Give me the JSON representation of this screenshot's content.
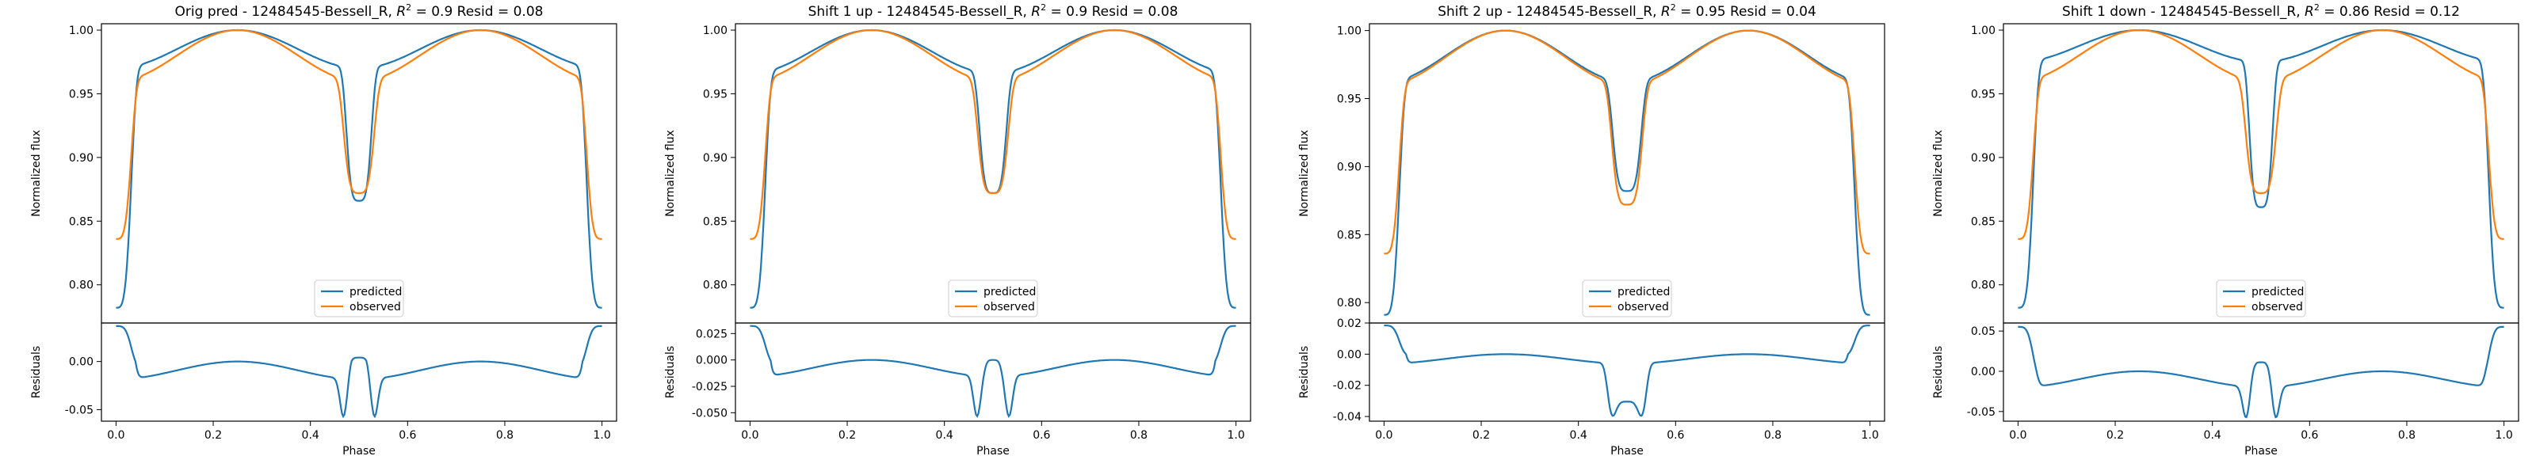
{
  "colors": {
    "predicted": "#1f77b4",
    "observed": "#ff7f0e"
  },
  "chart_data": [
    {
      "type": "line",
      "title": "Orig pred - 12484545-Bessell_R, R² = 0.9 Resid = 0.08",
      "title_prefix": "Orig pred - 12484545-Bessell_R, ",
      "title_suffix": " = 0.9 Resid = 0.08",
      "xlabel": "Phase",
      "ylabel": "Normalized flux",
      "resid_label": "Residuals",
      "xlim": [
        -0.03,
        1.03
      ],
      "ylim": [
        0.77,
        1.005
      ],
      "resid_ylim": [
        -0.062,
        0.04
      ],
      "xticks": [
        "0.0",
        "0.2",
        "0.4",
        "0.6",
        "0.8",
        "1.0"
      ],
      "yticks": [
        "0.80",
        "0.85",
        "0.90",
        "0.95",
        "1.00"
      ],
      "resid_yticks": [
        "-0.05",
        "0.00"
      ],
      "legend": {
        "location": "lower center",
        "entries": [
          "predicted",
          "observed"
        ]
      },
      "series": [
        {
          "name": "predicted",
          "model": {
            "plateau": 0.97,
            "amp": 0.03,
            "primary_depth": 0.104,
            "primary_width": 0.028,
            "edge_low": 0.782
          }
        },
        {
          "name": "observed",
          "model": {
            "plateau": 0.96,
            "amp": 0.04,
            "primary_depth": 0.088,
            "primary_width": 0.034,
            "edge_low": 0.836
          }
        }
      ]
    },
    {
      "type": "line",
      "title": "Shift 1 up - 12484545-Bessell_R, R² = 0.9 Resid = 0.08",
      "title_prefix": "Shift 1 up - 12484545-Bessell_R, ",
      "title_suffix": " = 0.9 Resid = 0.08",
      "xlabel": "Phase",
      "ylabel": "Normalized flux",
      "resid_label": "Residuals",
      "xlim": [
        -0.03,
        1.03
      ],
      "ylim": [
        0.77,
        1.005
      ],
      "resid_ylim": [
        -0.058,
        0.035
      ],
      "xticks": [
        "0.0",
        "0.2",
        "0.4",
        "0.6",
        "0.8",
        "1.0"
      ],
      "yticks": [
        "0.80",
        "0.85",
        "0.90",
        "0.95",
        "1.00"
      ],
      "resid_yticks": [
        "-0.050",
        "-0.025",
        "0.000",
        "0.025"
      ],
      "legend": {
        "location": "lower center",
        "entries": [
          "predicted",
          "observed"
        ]
      },
      "series": [
        {
          "name": "predicted",
          "model": {
            "plateau": 0.966,
            "amp": 0.034,
            "primary_depth": 0.094,
            "primary_width": 0.03,
            "edge_low": 0.782
          }
        },
        {
          "name": "observed",
          "model": {
            "plateau": 0.96,
            "amp": 0.04,
            "primary_depth": 0.088,
            "primary_width": 0.034,
            "edge_low": 0.836
          }
        }
      ]
    },
    {
      "type": "line",
      "title": "Shift 2 up - 12484545-Bessell_R, R² = 0.95 Resid = 0.04",
      "title_prefix": "Shift 2 up - 12484545-Bessell_R, ",
      "title_suffix": " = 0.95 Resid = 0.04",
      "xlabel": "Phase",
      "ylabel": "Normalized flux",
      "resid_label": "Residuals",
      "xlim": [
        -0.03,
        1.03
      ],
      "ylim": [
        0.785,
        1.005
      ],
      "resid_ylim": [
        -0.043,
        0.02
      ],
      "xticks": [
        "0.0",
        "0.2",
        "0.4",
        "0.6",
        "0.8",
        "1.0"
      ],
      "yticks": [
        "0.80",
        "0.85",
        "0.90",
        "0.95",
        "1.00"
      ],
      "resid_yticks": [
        "-0.04",
        "-0.02",
        "0.00",
        "0.02"
      ],
      "legend": {
        "location": "lower center",
        "entries": [
          "predicted",
          "observed"
        ]
      },
      "series": [
        {
          "name": "predicted",
          "model": {
            "plateau": 0.962,
            "amp": 0.038,
            "primary_depth": 0.08,
            "primary_width": 0.032,
            "edge_low": 0.791
          }
        },
        {
          "name": "observed",
          "model": {
            "plateau": 0.96,
            "amp": 0.04,
            "primary_depth": 0.088,
            "primary_width": 0.034,
            "edge_low": 0.836
          }
        }
      ]
    },
    {
      "type": "line",
      "title": "Shift 1 down - 12484545-Bessell_R, R² = 0.86 Resid = 0.12",
      "title_prefix": "Shift 1 down - 12484545-Bessell_R, ",
      "title_suffix": " = 0.86 Resid = 0.12",
      "xlabel": "Phase",
      "ylabel": "Normalized flux",
      "resid_label": "Residuals",
      "xlim": [
        -0.03,
        1.03
      ],
      "ylim": [
        0.77,
        1.005
      ],
      "resid_ylim": [
        -0.062,
        0.06
      ],
      "xticks": [
        "0.0",
        "0.2",
        "0.4",
        "0.6",
        "0.8",
        "1.0"
      ],
      "yticks": [
        "0.80",
        "0.85",
        "0.90",
        "0.95",
        "1.00"
      ],
      "resid_yticks": [
        "-0.05",
        "0.00",
        "0.05"
      ],
      "legend": {
        "location": "lower center",
        "entries": [
          "predicted",
          "observed"
        ]
      },
      "series": [
        {
          "name": "predicted",
          "model": {
            "plateau": 0.975,
            "amp": 0.025,
            "primary_depth": 0.114,
            "primary_width": 0.026,
            "edge_low": 0.782
          }
        },
        {
          "name": "observed",
          "model": {
            "plateau": 0.96,
            "amp": 0.04,
            "primary_depth": 0.088,
            "primary_width": 0.034,
            "edge_low": 0.836
          }
        }
      ]
    }
  ]
}
